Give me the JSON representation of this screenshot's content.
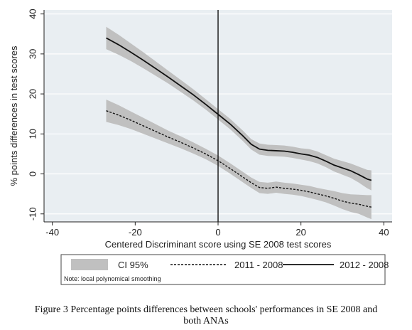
{
  "caption": {
    "line1": "Figure 3  Percentage points differences between schools' performances in SE 2008 and",
    "line2": "both ANAs"
  },
  "chart_data": {
    "type": "line",
    "title": "",
    "xlabel": "Centered Discriminant score using SE 2008 test scores",
    "ylabel": "% points differences in test scores",
    "xlim": [
      -42,
      42
    ],
    "ylim": [
      -12,
      41
    ],
    "xticks": [
      -40,
      -20,
      0,
      20,
      40
    ],
    "yticks": [
      -10,
      0,
      10,
      20,
      30,
      40
    ],
    "grid": "horizontal",
    "vline_x": 0,
    "legend": {
      "placement": "bottom",
      "entries": [
        "CI 95%",
        "2011 - 2008",
        "2012 - 2008"
      ],
      "note": "Note: local polynomical smoothing"
    },
    "colors": {
      "background": "#e9eef2",
      "ci_band": "#c0c0c0",
      "line": "#111111",
      "grid": "#ffffff"
    },
    "series": [
      {
        "name": "2012 - 2008",
        "style": "solid",
        "x": [
          -27,
          -24,
          -21,
          -18,
          -15,
          -12,
          -9,
          -6,
          -3,
          0,
          3,
          6,
          8,
          10,
          12,
          14,
          16,
          18,
          20,
          22,
          24,
          26,
          28,
          30,
          32,
          34,
          36,
          37
        ],
        "y": [
          34,
          32.3,
          30.4,
          28.4,
          26.3,
          24.2,
          22,
          19.8,
          17.4,
          14.9,
          12.4,
          9.5,
          7.4,
          6.2,
          5.9,
          5.8,
          5.7,
          5.4,
          5,
          4.7,
          4.1,
          3.2,
          2.2,
          1.5,
          0.8,
          -0.2,
          -1.3,
          -1.6
        ],
        "ci_half_width": [
          2.8,
          2.5,
          2.2,
          2,
          1.8,
          1.6,
          1.5,
          1.4,
          1.3,
          1.3,
          1.3,
          1.3,
          1.3,
          1.4,
          1.4,
          1.4,
          1.4,
          1.4,
          1.4,
          1.5,
          1.5,
          1.5,
          1.6,
          1.7,
          1.8,
          2,
          2.3,
          2.5
        ]
      },
      {
        "name": "2011 - 2008",
        "style": "dashed",
        "x": [
          -27,
          -24,
          -21,
          -18,
          -15,
          -12,
          -9,
          -6,
          -3,
          0,
          3,
          6,
          8,
          10,
          12,
          14,
          16,
          18,
          20,
          22,
          24,
          26,
          28,
          30,
          32,
          34,
          36,
          37
        ],
        "y": [
          15.8,
          14.7,
          13.4,
          12,
          10.6,
          9.2,
          7.9,
          6.5,
          5,
          3.3,
          1.3,
          -0.8,
          -2.2,
          -3.4,
          -3.6,
          -3.3,
          -3.6,
          -3.8,
          -4.1,
          -4.5,
          -5,
          -5.5,
          -6.1,
          -6.8,
          -7.3,
          -7.6,
          -8.1,
          -8.3
        ],
        "ci_half_width": [
          2.8,
          2.5,
          2.2,
          2,
          1.8,
          1.6,
          1.5,
          1.4,
          1.3,
          1.3,
          1.3,
          1.3,
          1.3,
          1.4,
          1.4,
          1.4,
          1.4,
          1.4,
          1.4,
          1.5,
          1.5,
          1.6,
          1.8,
          2,
          2.2,
          2.4,
          2.8,
          3
        ]
      }
    ]
  }
}
